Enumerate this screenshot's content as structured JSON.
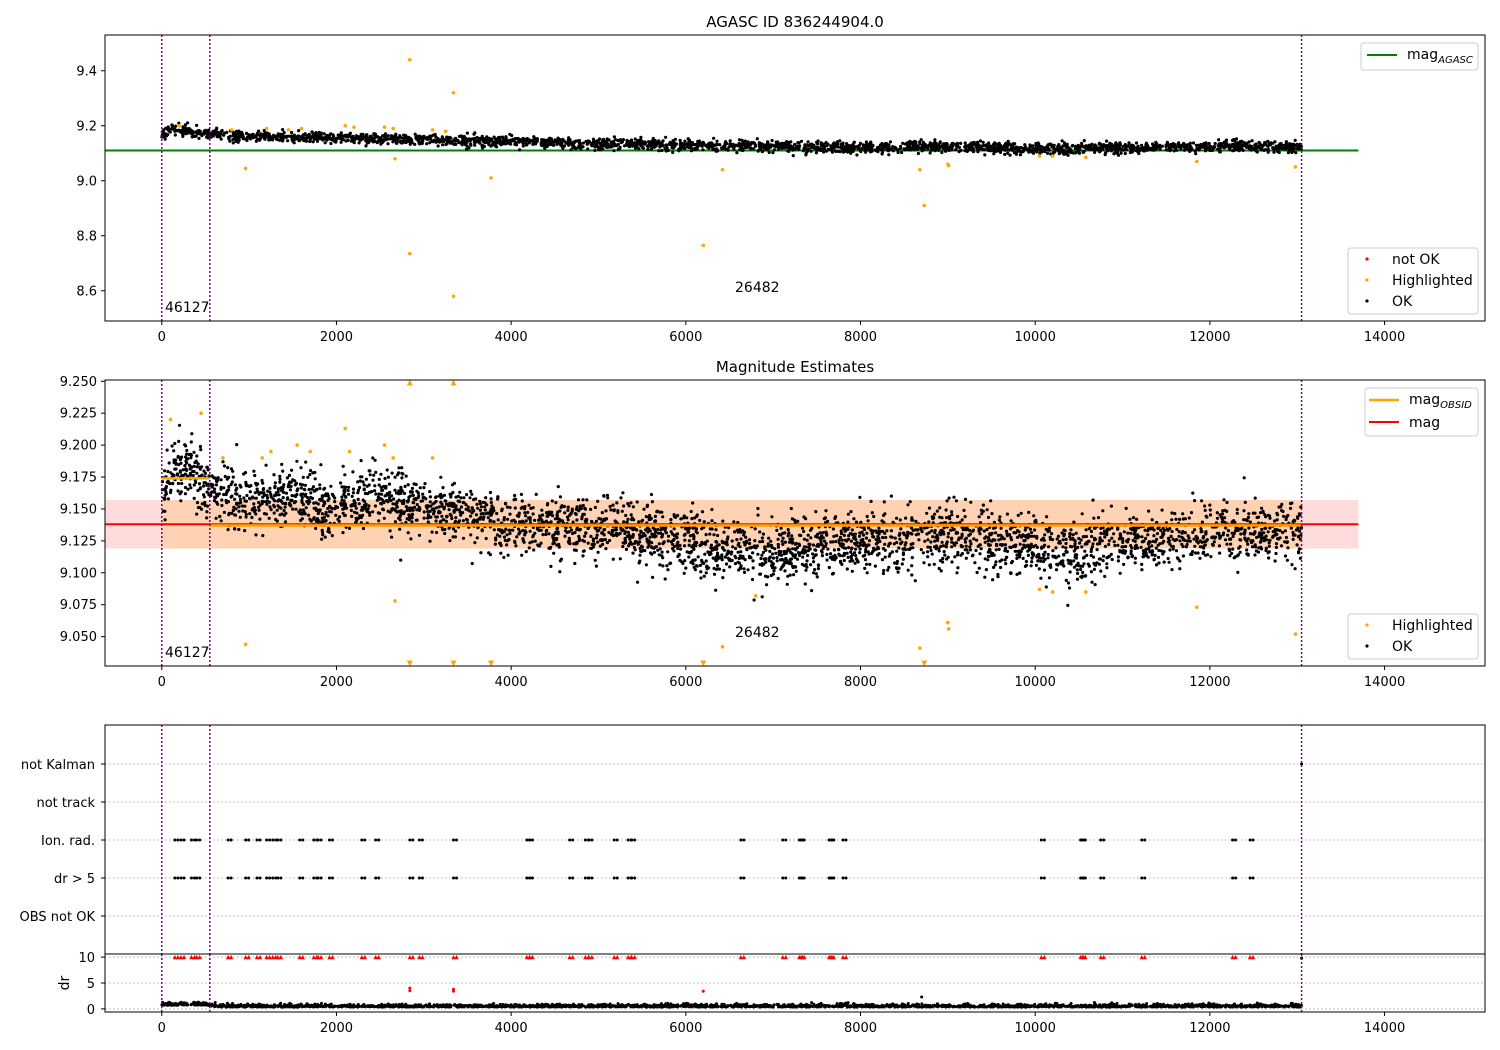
{
  "chart_data": [
    {
      "type": "scatter",
      "title": "AGASC ID 836244904.0",
      "xlim": [
        -650,
        15150
      ],
      "ylim": [
        8.49,
        9.53
      ],
      "xticks": [
        0,
        2000,
        4000,
        6000,
        8000,
        10000,
        12000,
        14000
      ],
      "yticks": [
        8.6,
        8.8,
        9.0,
        9.2,
        9.4
      ],
      "grid": false,
      "reference_line": {
        "label": "mag",
        "subscript": "AGASC",
        "value": 9.11,
        "color": "#008000",
        "x_range": [
          -650,
          13700
        ]
      },
      "vertical_markers": [
        0,
        550,
        13050
      ],
      "annotations": [
        {
          "text": "46127",
          "x": 30,
          "y": 8.545
        },
        {
          "text": "26482",
          "x": 6570,
          "y": 8.6
        }
      ],
      "legend_top": {
        "position": "top-right",
        "entries": [
          "mag"
        ]
      },
      "legend_bottom": {
        "position": "bottom-right",
        "entries": [
          "not OK",
          "Highlighted",
          "OK"
        ]
      },
      "series": [
        {
          "name": "OK",
          "color": "#000000",
          "trend": [
            [
              0,
              9.165
            ],
            [
              150,
              9.19
            ],
            [
              300,
              9.18
            ],
            [
              550,
              9.17
            ],
            [
              1000,
              9.16
            ],
            [
              2000,
              9.155
            ],
            [
              3000,
              9.15
            ],
            [
              4000,
              9.145
            ],
            [
              5000,
              9.135
            ],
            [
              6000,
              9.13
            ],
            [
              7000,
              9.125
            ],
            [
              8000,
              9.12
            ],
            [
              9000,
              9.125
            ],
            [
              10000,
              9.115
            ],
            [
              11000,
              9.12
            ],
            [
              12000,
              9.125
            ],
            [
              13050,
              9.125
            ]
          ],
          "x_range": [
            0,
            13050
          ],
          "spread": 0.022
        },
        {
          "name": "Highlighted",
          "color": "#FFA500",
          "points": [
            [
              2840,
              9.44
            ],
            [
              3340,
              9.32
            ],
            [
              960,
              9.045
            ],
            [
              2670,
              9.08
            ],
            [
              3770,
              9.01
            ],
            [
              2840,
              8.735
            ],
            [
              3340,
              8.58
            ],
            [
              6200,
              8.765
            ],
            [
              6420,
              9.04
            ],
            [
              8680,
              9.04
            ],
            [
              8730,
              8.91
            ],
            [
              9000,
              9.06
            ],
            [
              9010,
              9.055
            ],
            [
              10050,
              9.09
            ],
            [
              10200,
              9.09
            ],
            [
              10580,
              9.085
            ],
            [
              11850,
              9.07
            ],
            [
              12980,
              9.05
            ],
            [
              200,
              9.2
            ],
            [
              800,
              9.185
            ],
            [
              1200,
              9.19
            ],
            [
              1450,
              9.185
            ],
            [
              1600,
              9.19
            ],
            [
              2100,
              9.2
            ],
            [
              2200,
              9.195
            ],
            [
              2550,
              9.195
            ],
            [
              2650,
              9.19
            ],
            [
              3100,
              9.185
            ],
            [
              3250,
              9.18
            ]
          ]
        }
      ]
    },
    {
      "type": "scatter",
      "title": "Magnitude Estimates",
      "xlim": [
        -650,
        15150
      ],
      "ylim": [
        9.027,
        9.251
      ],
      "xticks": [
        0,
        2000,
        4000,
        6000,
        8000,
        10000,
        12000,
        14000
      ],
      "yticks": [
        9.05,
        9.075,
        9.1,
        9.125,
        9.15,
        9.175,
        9.2,
        9.225,
        9.25
      ],
      "grid": false,
      "lines": [
        {
          "label": "mag",
          "subscript": "OBSID",
          "color": "#FFA500",
          "segments": [
            [
              0,
              550,
              9.174
            ],
            [
              550,
              13050,
              9.137
            ]
          ]
        },
        {
          "label": "mag",
          "color": "#FF0000",
          "value": 9.138,
          "x_range": [
            -650,
            13700
          ]
        }
      ],
      "band": {
        "y_range": [
          9.119,
          9.157
        ],
        "x_range": [
          -650,
          13700
        ]
      },
      "vertical_markers": [
        0,
        550,
        13050
      ],
      "annotations": [
        {
          "text": "46127",
          "x": 30,
          "y": 9.034
        },
        {
          "text": "26482",
          "x": 6570,
          "y": 9.052
        }
      ],
      "legend_top": {
        "position": "top-right",
        "entries": [
          "mag",
          "mag"
        ]
      },
      "legend_bottom": {
        "position": "bottom-right",
        "entries": [
          "Highlighted",
          "OK"
        ]
      },
      "series": [
        {
          "name": "OK",
          "color": "#000000",
          "trend": [
            [
              0,
              9.16
            ],
            [
              150,
              9.185
            ],
            [
              300,
              9.18
            ],
            [
              550,
              9.165
            ],
            [
              1000,
              9.155
            ],
            [
              1500,
              9.16
            ],
            [
              2000,
              9.15
            ],
            [
              2500,
              9.16
            ],
            [
              3000,
              9.15
            ],
            [
              3500,
              9.145
            ],
            [
              4000,
              9.14
            ],
            [
              5000,
              9.135
            ],
            [
              6000,
              9.125
            ],
            [
              6800,
              9.115
            ],
            [
              8000,
              9.125
            ],
            [
              9000,
              9.13
            ],
            [
              10000,
              9.12
            ],
            [
              10500,
              9.115
            ],
            [
              11000,
              9.125
            ],
            [
              12000,
              9.13
            ],
            [
              13050,
              9.132
            ]
          ],
          "x_range": [
            0,
            13050
          ],
          "spread": 0.026
        },
        {
          "name": "Highlighted",
          "color": "#FFA500",
          "points": [
            [
              100,
              9.22
            ],
            [
              450,
              9.225
            ],
            [
              700,
              9.19
            ],
            [
              1150,
              9.19
            ],
            [
              1250,
              9.195
            ],
            [
              1550,
              9.2
            ],
            [
              1700,
              9.195
            ],
            [
              2100,
              9.213
            ],
            [
              2150,
              9.195
            ],
            [
              2550,
              9.2
            ],
            [
              2650,
              9.19
            ],
            [
              3100,
              9.19
            ],
            [
              960,
              9.044
            ],
            [
              2670,
              9.078
            ],
            [
              6420,
              9.042
            ],
            [
              6800,
              9.082
            ],
            [
              8680,
              9.041
            ],
            [
              9000,
              9.061
            ],
            [
              9010,
              9.056
            ],
            [
              10050,
              9.087
            ],
            [
              10200,
              9.085
            ],
            [
              10580,
              9.085
            ],
            [
              11850,
              9.073
            ],
            [
              12980,
              9.052
            ]
          ]
        },
        {
          "name": "Highlighted (clipped)",
          "color": "#FFA500",
          "marker": "triangle",
          "points": [
            [
              2840,
              9.249
            ],
            [
              3340,
              9.249
            ],
            [
              2840,
              9.029
            ],
            [
              3340,
              9.029
            ],
            [
              3770,
              9.029
            ],
            [
              6200,
              9.029
            ],
            [
              8730,
              9.029
            ]
          ]
        }
      ]
    },
    {
      "type": "scatter",
      "title": "",
      "xlim": [
        -650,
        15150
      ],
      "categories": [
        "not Kalman",
        "not track",
        "Ion. rad.",
        "dr > 5",
        "OBS not OK"
      ],
      "grid": "y-dotted",
      "vertical_markers": [
        0,
        550,
        13050
      ],
      "flag_x": [
        150,
        220,
        340,
        400,
        760,
        960,
        1090,
        1200,
        1270,
        1330,
        1580,
        1740,
        1790,
        1920,
        2290,
        2450,
        2840,
        2950,
        3340,
        4180,
        4210,
        4670,
        4850,
        4890,
        5180,
        5340,
        5380,
        6630,
        7110,
        7300,
        7320,
        7640,
        7660,
        7800,
        10070,
        10520,
        10540,
        10750,
        11220,
        12260,
        12460
      ],
      "not_kalman_x": [
        13050
      ]
    },
    {
      "type": "scatter",
      "title": "",
      "ylabel": "dr",
      "xlim": [
        -650,
        15150
      ],
      "ylim": [
        -0.6,
        10.6
      ],
      "yticks": [
        0,
        5,
        10
      ],
      "xticks": [
        0,
        2000,
        4000,
        6000,
        8000,
        10000,
        12000,
        14000
      ],
      "grid": "y-dotted",
      "vertical_markers": [
        0,
        550,
        13050
      ],
      "series": [
        {
          "name": "OK",
          "color": "#000000",
          "trend": [
            [
              0,
              0.8
            ],
            [
              500,
              0.9
            ],
            [
              600,
              0.5
            ],
            [
              13050,
              0.5
            ]
          ],
          "x_range": [
            0,
            13050
          ],
          "spread": 0.45
        },
        {
          "name": "not OK",
          "color": "#FF0000",
          "marker": "triangle",
          "at_y": 10,
          "x_ref": "flag_x"
        },
        {
          "name": "not OK",
          "color": "#FF0000",
          "points": [
            [
              2840,
              4.0
            ],
            [
              2840,
              3.5
            ],
            [
              3340,
              3.8
            ],
            [
              3340,
              3.4
            ],
            [
              6200,
              3.4
            ]
          ]
        },
        {
          "name": "OK",
          "color": "#000000",
          "points": [
            [
              8700,
              2.3
            ],
            [
              13050,
              9.8
            ]
          ]
        }
      ]
    }
  ]
}
